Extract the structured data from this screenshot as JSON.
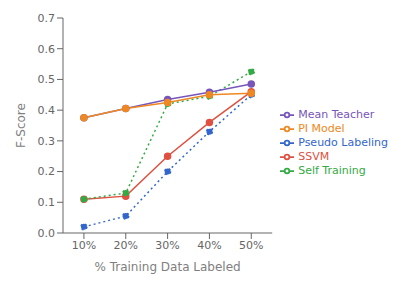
{
  "chart_data": {
    "type": "line",
    "xlabel": "% Training Data Labeled",
    "ylabel": "F-Score",
    "x": [
      10,
      20,
      30,
      40,
      50
    ],
    "series": [
      {
        "name": "SSVM",
        "color": "#e05040",
        "marker": "circle",
        "line_style": "solid",
        "values": [
          0.11,
          0.12,
          0.25,
          0.36,
          0.46
        ]
      },
      {
        "name": "Self Training",
        "color": "#33aa44",
        "marker": "circle",
        "line_style": "dotted",
        "values": [
          0.11,
          0.13,
          0.42,
          0.445,
          0.525
        ]
      },
      {
        "name": "Pseudo Labeling",
        "color": "#3366cc",
        "marker": "circle",
        "line_style": "dotted",
        "values": [
          0.02,
          0.055,
          0.2,
          0.33,
          0.45
        ]
      },
      {
        "name": "Mean Teacher",
        "color": "#7755bb",
        "marker": "circle",
        "line_style": "solid",
        "values": [
          0.375,
          0.405,
          0.435,
          0.458,
          0.485
        ]
      },
      {
        "name": "PI Model",
        "color": "#ee8822",
        "marker": "circle",
        "line_style": "solid",
        "values": [
          0.375,
          0.405,
          0.425,
          0.45,
          0.455
        ]
      }
    ],
    "xlim": [
      5,
      55
    ],
    "xticks": [
      {
        "value": 10,
        "label": "10%"
      },
      {
        "value": 20,
        "label": "20%"
      },
      {
        "value": 30,
        "label": "30%"
      },
      {
        "value": 40,
        "label": "40%"
      },
      {
        "value": 50,
        "label": "50%"
      }
    ],
    "ylim": [
      0.0,
      0.7
    ],
    "yticks": [
      {
        "value": 0.0,
        "label": "0.0"
      },
      0.1,
      0.2,
      0.3,
      0.4,
      0.5,
      0.6,
      0.7
    ],
    "grid": false,
    "legend": "right"
  }
}
